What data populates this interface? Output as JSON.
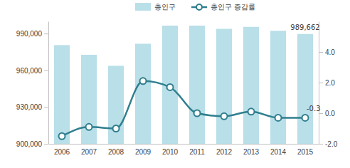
{
  "chart_data": {
    "type": "bar",
    "categories": [
      "2006",
      "2007",
      "2008",
      "2009",
      "2010",
      "2011",
      "2012",
      "2013",
      "2014",
      "2015"
    ],
    "series": [
      {
        "name": "총인구",
        "type": "bar",
        "color": "#b9dfe9",
        "values": [
          980600,
          972700,
          963700,
          981700,
          996500,
          996500,
          993900,
          995500,
          992300,
          989662
        ],
        "value_labels": [
          null,
          null,
          null,
          null,
          null,
          null,
          null,
          null,
          null,
          "989,662"
        ]
      },
      {
        "name": "총인구 증감률",
        "type": "line",
        "axis": "y2",
        "color": "#2f7f8e",
        "marker": "circle",
        "line_style": "solid",
        "values": [
          -1.5,
          -0.9,
          -1.0,
          2.1,
          1.7,
          0.0,
          -0.2,
          0.1,
          -0.3,
          -0.3
        ],
        "value_labels": [
          null,
          null,
          null,
          null,
          null,
          null,
          null,
          null,
          null,
          "-0.3"
        ]
      }
    ],
    "ylim": [
      900000,
      1000000
    ],
    "yticks": [
      {
        "value": 900000,
        "label": "900,000"
      },
      {
        "value": 930000,
        "label": "930,000"
      },
      {
        "value": 960000,
        "label": "960,000"
      },
      {
        "value": 990000,
        "label": "990,000"
      }
    ],
    "y2lim": [
      -2,
      6
    ],
    "y2ticks": [
      {
        "value": -2,
        "label": "-2.0"
      },
      {
        "value": 0,
        "label": "0.0"
      },
      {
        "value": 2,
        "label": "2.0"
      },
      {
        "value": 4,
        "label": "4.0"
      }
    ],
    "grid": false,
    "legend": "top"
  }
}
